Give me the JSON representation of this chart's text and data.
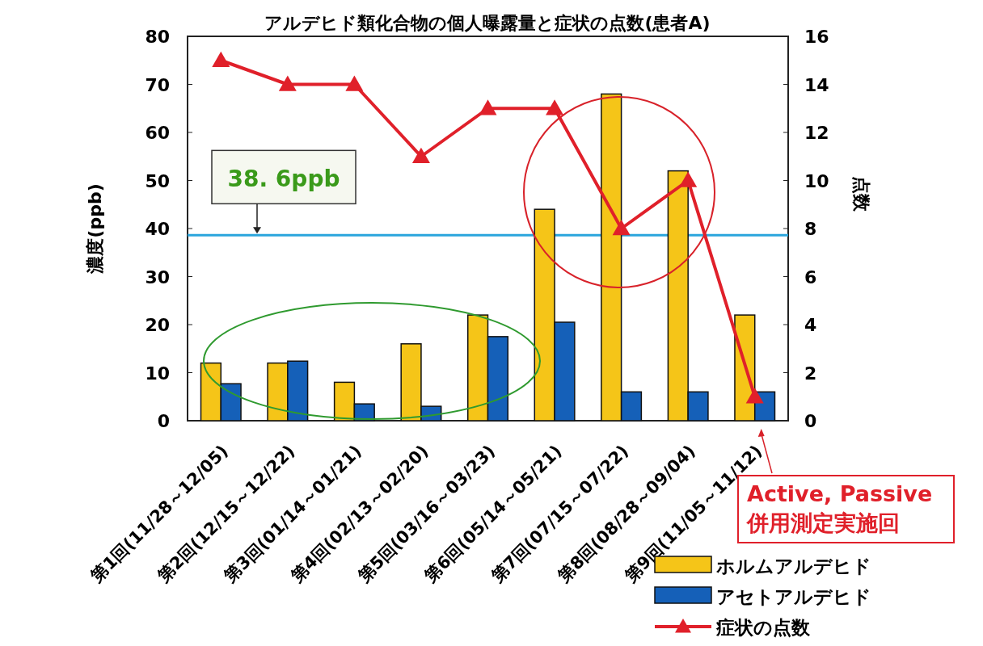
{
  "chart_data": {
    "type": "bar",
    "title": "アルデヒド類化合物の個人曝露量と症状の点数(患者A)",
    "ylabel": "濃度(ppb)",
    "y2label": "点数",
    "categories": [
      "第1回(11/28～12/05)",
      "第2回(12/15～12/22)",
      "第3回(01/14～01/21)",
      "第4回(02/13～02/20)",
      "第5回(03/16～03/23)",
      "第6回(05/14～05/21)",
      "第7回(07/15～07/22)",
      "第8回(08/28～09/04)",
      "第9回(11/05～11/12)"
    ],
    "series": [
      {
        "name": "ホルムアルデヒド",
        "color": "#f5c518",
        "values": [
          12,
          12,
          8,
          16,
          22,
          44,
          68,
          52,
          22
        ]
      },
      {
        "name": "アセトアルデヒド",
        "color": "#1560b8",
        "values": [
          7.7,
          12.4,
          3.5,
          3,
          17.5,
          20.5,
          6,
          6,
          6
        ]
      },
      {
        "name": "症状の点数",
        "type": "line",
        "axis": "y2",
        "color": "#e0202a",
        "marker": "triangle",
        "values": [
          15,
          14,
          14,
          11,
          13,
          13,
          8,
          10,
          1
        ]
      }
    ],
    "ylim": [
      0,
      80
    ],
    "yticks": [
      0,
      10,
      20,
      30,
      40,
      50,
      60,
      70,
      80
    ],
    "y2lim": [
      0,
      16
    ],
    "y2ticks": [
      0,
      2,
      4,
      6,
      8,
      10,
      12,
      14,
      16
    ],
    "ref_lines": [
      {
        "axis": "y",
        "value": 38.6,
        "label": "38. 6ppb",
        "color": "#2aa5dc"
      }
    ],
    "annotations": [
      {
        "text": "Active, Passive 併用測定実施回",
        "x": "第9回(11/05～11/12)",
        "y": 0
      }
    ],
    "legend": "bottom right"
  }
}
